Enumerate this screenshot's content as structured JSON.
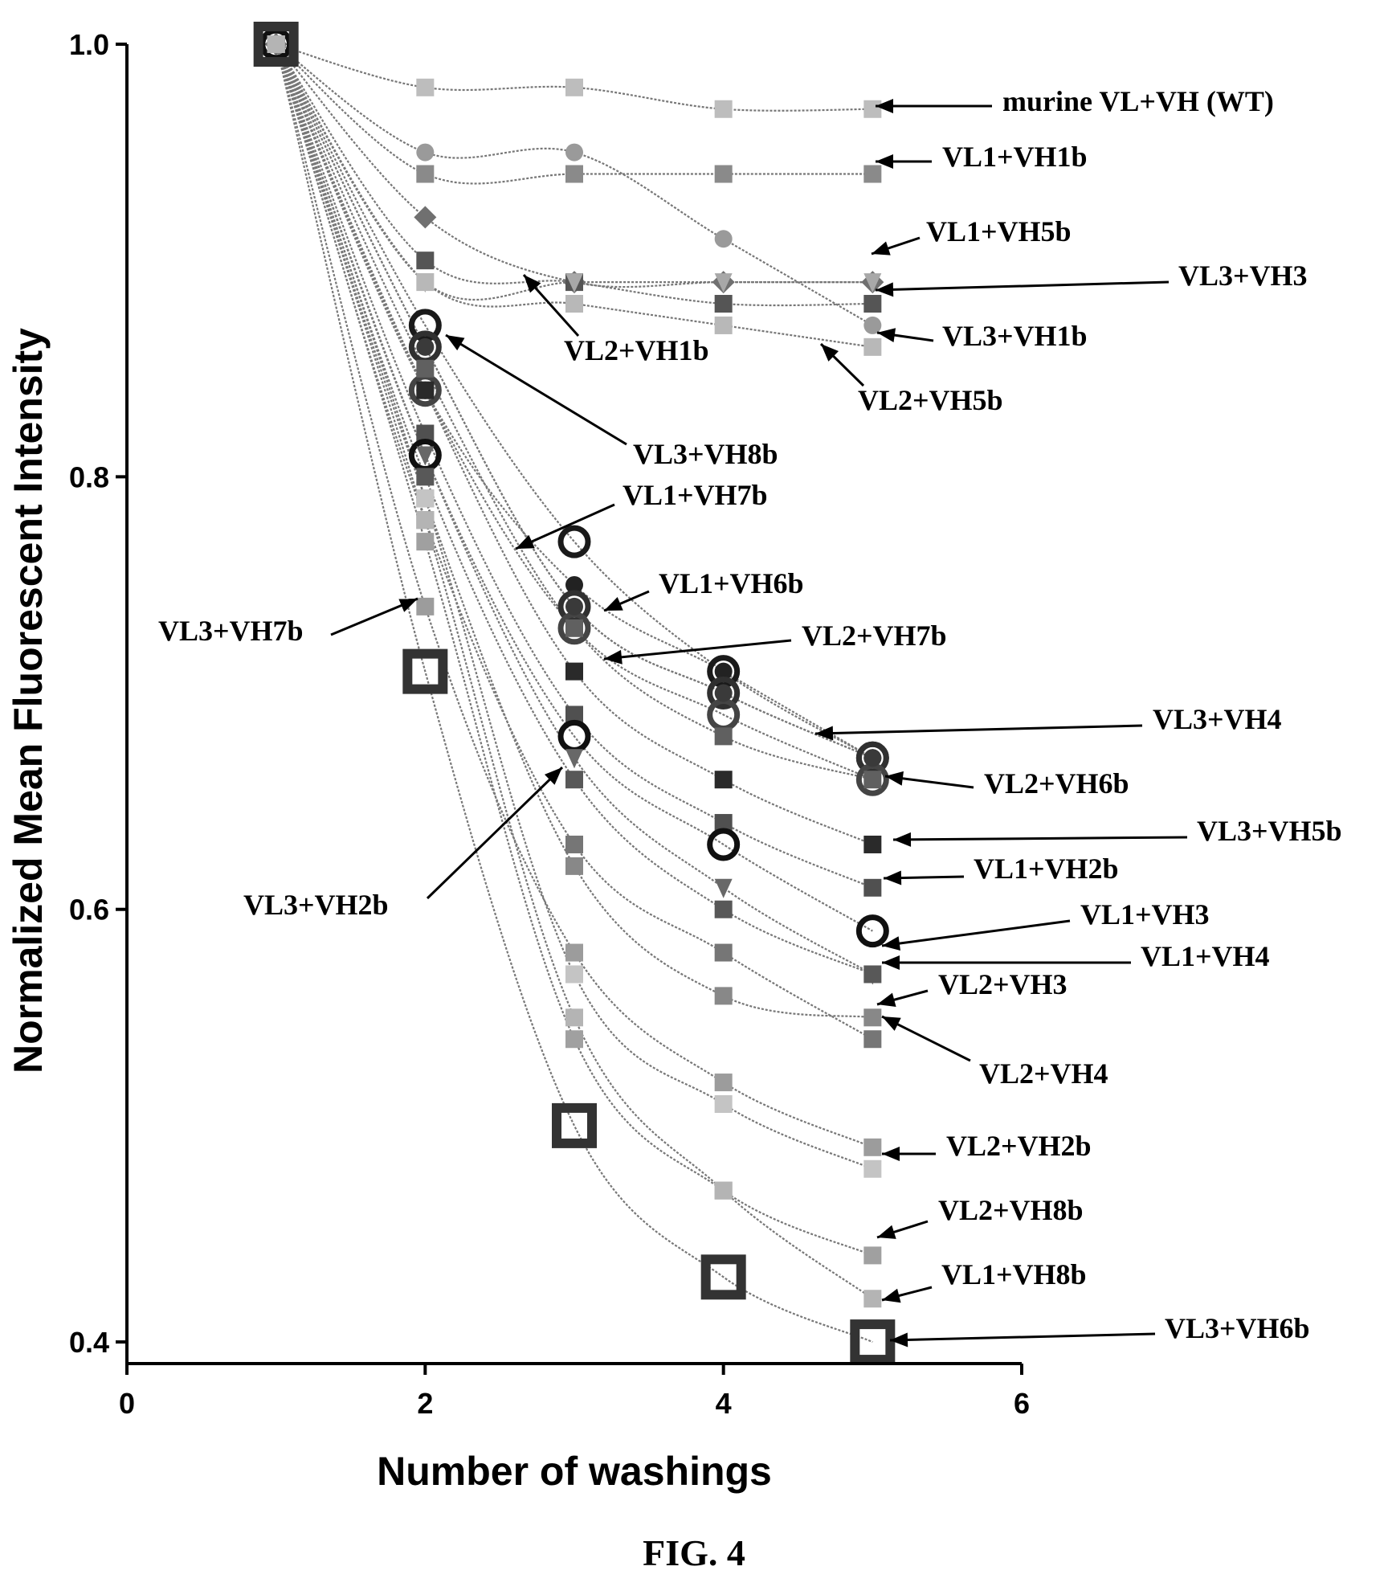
{
  "figure": {
    "caption": "FIG. 4"
  },
  "chart_data": {
    "type": "scatter",
    "xlabel": "Number of washings",
    "ylabel": "Normalized Mean Fluorescent Intensity",
    "xlim": [
      0,
      6
    ],
    "ylim": [
      0.39,
      1.0
    ],
    "xticks": [
      "0",
      "2",
      "4",
      "6"
    ],
    "yticks": [
      "0.4",
      "0.6",
      "0.8",
      "1.0"
    ],
    "grid": false,
    "legend": "inline-labels-right",
    "x": [
      1,
      2,
      3,
      4,
      5
    ],
    "series": [
      {
        "name": "murine VL+VH (WT)",
        "values": [
          1.0,
          0.98,
          0.98,
          0.97,
          0.97
        ],
        "shade": "#bdbdbd",
        "marker": "square"
      },
      {
        "name": "VL1+VH1b",
        "values": [
          1.0,
          0.94,
          0.94,
          0.94,
          0.94
        ],
        "shade": "#8a8a8a",
        "marker": "square"
      },
      {
        "name": "VL1+VH5b",
        "values": [
          1.0,
          0.92,
          0.89,
          0.89,
          0.89
        ],
        "shade": "#707070",
        "marker": "diamond"
      },
      {
        "name": "VL3+VH3",
        "values": [
          1.0,
          0.9,
          0.89,
          0.88,
          0.88
        ],
        "shade": "#555555",
        "marker": "square"
      },
      {
        "name": "VL3+VH1b",
        "values": [
          1.0,
          0.95,
          0.95,
          0.91,
          0.87
        ],
        "shade": "#9a9a9a",
        "marker": "circle"
      },
      {
        "name": "VL2+VH1b",
        "values": [
          1.0,
          0.89,
          0.89,
          0.89,
          0.89
        ],
        "shade": "#a8a8a8",
        "marker": "triangle"
      },
      {
        "name": "VL2+VH5b",
        "values": [
          1.0,
          0.89,
          0.88,
          0.87,
          0.86
        ],
        "shade": "#b8b8b8",
        "marker": "square"
      },
      {
        "name": "VL3+VH8b",
        "values": [
          1.0,
          0.87,
          0.77,
          0.71,
          0.67
        ],
        "shade": "#1a1a1a",
        "marker": "ring"
      },
      {
        "name": "VL1+VH7b",
        "values": [
          1.0,
          0.84,
          0.75,
          0.71,
          0.67
        ],
        "shade": "#222222",
        "marker": "circle"
      },
      {
        "name": "VL1+VH6b",
        "values": [
          1.0,
          0.86,
          0.74,
          0.7,
          0.67
        ],
        "shade": "#303030",
        "marker": "ring"
      },
      {
        "name": "VL2+VH7b",
        "values": [
          1.0,
          0.84,
          0.73,
          0.69,
          0.66
        ],
        "shade": "#444444",
        "marker": "ring"
      },
      {
        "name": "VL3+VH4",
        "values": [
          1.0,
          0.86,
          0.74,
          0.7,
          0.67
        ],
        "shade": "#3a3a3a",
        "marker": "circle"
      },
      {
        "name": "VL2+VH6b",
        "values": [
          1.0,
          0.85,
          0.73,
          0.68,
          0.66
        ],
        "shade": "#606060",
        "marker": "square"
      },
      {
        "name": "VL3+VH5b",
        "values": [
          1.0,
          0.84,
          0.71,
          0.66,
          0.63
        ],
        "shade": "#2a2a2a",
        "marker": "square"
      },
      {
        "name": "VL1+VH2b",
        "values": [
          1.0,
          0.82,
          0.69,
          0.64,
          0.61
        ],
        "shade": "#505050",
        "marker": "square"
      },
      {
        "name": "VL1+VH3",
        "values": [
          1.0,
          0.81,
          0.68,
          0.63,
          0.59
        ],
        "shade": "#101010",
        "marker": "ring"
      },
      {
        "name": "VL1+VH4",
        "values": [
          1.0,
          0.81,
          0.67,
          0.61,
          0.57
        ],
        "shade": "#686868",
        "marker": "triangle"
      },
      {
        "name": "VL2+VH3",
        "values": [
          1.0,
          0.79,
          0.62,
          0.56,
          0.55
        ],
        "shade": "#888888",
        "marker": "square"
      },
      {
        "name": "VL2+VH4",
        "values": [
          1.0,
          0.78,
          0.63,
          0.58,
          0.54
        ],
        "shade": "#767676",
        "marker": "square"
      },
      {
        "name": "VL3+VH2b",
        "values": [
          1.0,
          0.8,
          0.66,
          0.6,
          0.57
        ],
        "shade": "#585858",
        "marker": "square"
      },
      {
        "name": "VL3+VH7b",
        "values": [
          1.0,
          0.74,
          0.58,
          0.52,
          0.49
        ],
        "shade": "#9c9c9c",
        "marker": "square"
      },
      {
        "name": "VL2+VH2b",
        "values": [
          1.0,
          0.79,
          0.57,
          0.51,
          0.48
        ],
        "shade": "#c4c4c4",
        "marker": "square"
      },
      {
        "name": "VL2+VH8b",
        "values": [
          1.0,
          0.77,
          0.54,
          0.47,
          0.44
        ],
        "shade": "#a0a0a0",
        "marker": "square"
      },
      {
        "name": "VL1+VH8b",
        "values": [
          1.0,
          0.78,
          0.55,
          0.47,
          0.42
        ],
        "shade": "#b4b4b4",
        "marker": "square"
      },
      {
        "name": "VL3+VH6b",
        "values": [
          1.0,
          0.71,
          0.5,
          0.43,
          0.4
        ],
        "shade": "#333333",
        "marker": "hollow-square"
      }
    ]
  }
}
